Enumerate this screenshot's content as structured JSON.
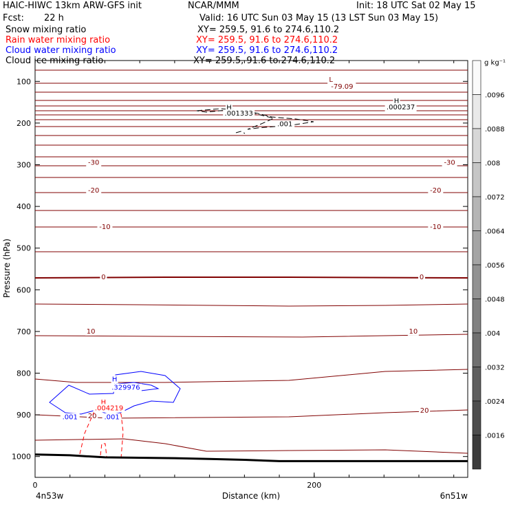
{
  "header": {
    "title": "HAIC-HIWC 13km ARW-GFS init",
    "org": "NCAR/MMM",
    "init": "Init: 18 UTC Sat 02 May 15",
    "fcst_label": "Fcst:",
    "fcst_value": "22 h",
    "valid": "Valid: 16 UTC Sun 03 May 15 (13 LST Sun 03 May 15)"
  },
  "legend": [
    {
      "name": "Snow mixing ratio",
      "xy": "XY= 259.5, 91.6 to 274.6,110.2",
      "color": "#000000"
    },
    {
      "name": "Rain water mixing ratio",
      "xy": "XY= 259.5, 91.6 to 274.6,110.2",
      "color": "#ff0000"
    },
    {
      "name": "Cloud water mixing ratio",
      "xy": "XY= 259.5, 91.6 to 274.6,110.2",
      "color": "#0000ff"
    },
    {
      "name": "Cloud ice mixing ratio",
      "xy": "XY= 259.5, 91.6 to 274.6,110.2",
      "color": "#000000"
    }
  ],
  "chart_data": {
    "type": "contour",
    "xlabel": "Distance (km)",
    "ylabel": "Pressure (hPa)",
    "xlim": [
      0,
      310
    ],
    "ylim": [
      1050,
      50
    ],
    "x_ticks": [
      "0",
      "200"
    ],
    "y_ticks": [
      100,
      200,
      300,
      400,
      500,
      600,
      700,
      800,
      900,
      1000
    ],
    "x_endpoints": [
      "4n53w",
      "6n51w"
    ],
    "temperature_isotherms": {
      "color": "#800000",
      "labels": [
        {
          "text": "-30",
          "x": 42,
          "y": 295
        },
        {
          "text": "-30",
          "x": 297,
          "y": 295
        },
        {
          "text": "-20",
          "x": 42,
          "y": 362
        },
        {
          "text": "-20",
          "x": 287,
          "y": 362
        },
        {
          "text": "-10",
          "x": 50,
          "y": 449
        },
        {
          "text": "-10",
          "x": 287,
          "y": 449
        },
        {
          "text": "0",
          "x": 49,
          "y": 570
        },
        {
          "text": "0",
          "x": 277,
          "y": 570
        },
        {
          "text": "10",
          "x": 40,
          "y": 700
        },
        {
          "text": "10",
          "x": 271,
          "y": 700
        },
        {
          "text": "20",
          "x": 41,
          "y": 903
        },
        {
          "text": "20",
          "x": 279,
          "y": 890
        },
        {
          "text": "L",
          "x": 212,
          "y": 96
        },
        {
          "text": "-79.09",
          "x": 220,
          "y": 113
        }
      ]
    },
    "cloud_ice_labels": [
      {
        "text": "H",
        "x": 139,
        "y": 163
      },
      {
        "text": ".001333",
        "x": 146,
        "y": 177
      },
      {
        "text": ".001",
        "x": 179,
        "y": 203
      },
      {
        "text": "H",
        "x": 259,
        "y": 147
      },
      {
        "text": ".000237",
        "x": 262,
        "y": 162
      }
    ],
    "cloud_water_labels": [
      {
        "text": "H",
        "x": 57,
        "y": 815
      },
      {
        "text": ".329976",
        "x": 65,
        "y": 835
      },
      {
        "text": ".001",
        "x": 25,
        "y": 906
      },
      {
        "text": ".001",
        "x": 55,
        "y": 906
      }
    ],
    "rain_water_labels": [
      {
        "text": "H",
        "x": 49,
        "y": 870
      },
      {
        "text": ".004219",
        "x": 53,
        "y": 884
      }
    ],
    "surface_pressure": {
      "x": [
        0,
        25,
        50,
        75,
        100,
        125,
        150,
        175,
        200,
        250,
        310
      ],
      "y": [
        995,
        997,
        1002,
        1003,
        1004,
        1006,
        1008,
        1011,
        1011,
        1011,
        1011
      ]
    },
    "colorbar": {
      "unit": "g kg⁻¹",
      "ticks": [
        ".0096",
        ".0088",
        ".008",
        ".0072",
        ".0064",
        ".0056",
        ".0048",
        ".004",
        ".0032",
        ".0024",
        ".0016"
      ]
    }
  }
}
